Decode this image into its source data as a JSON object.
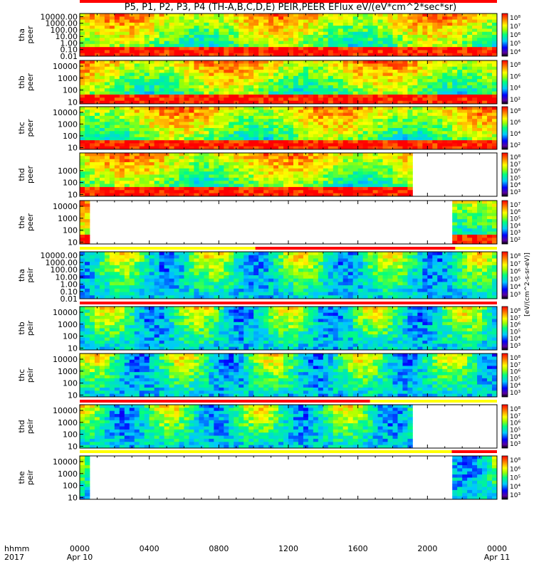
{
  "chart_data": {
    "type": "heatmap",
    "title": "P5, P1, P2, P3, P4 (TH-A,B,C,D,E) PEIR,PEER EFlux eV/(eV*cm^2*sec*sr)",
    "colorbar_label": "[eV/(cm^2-s-sr-eV)]",
    "x_axis": {
      "row1_label": "hhmm",
      "row2_label": "2017",
      "ticks": [
        "0000",
        "0400",
        "0800",
        "1200",
        "1600",
        "2000",
        "0000"
      ],
      "date_labels": [
        "Apr 10",
        "Apr 11"
      ],
      "range_hours": [
        0,
        24
      ]
    },
    "panels": [
      {
        "label_top": "tha",
        "label_bottom": "peer",
        "y_scale": "log",
        "y_range": [
          0.01,
          30000
        ],
        "yticks": [
          "10000.00",
          "1000.00",
          "100.00",
          "10.00",
          "1.00",
          "0.10",
          "0.01"
        ],
        "cb_ticks": [
          "10⁸",
          "10⁷",
          "10⁶",
          "10⁵",
          "10⁴"
        ],
        "data_coverage_hours": [
          0,
          24
        ],
        "bar": null
      },
      {
        "label_top": "thb",
        "label_bottom": "peer",
        "y_scale": "log",
        "y_range": [
          7,
          30000
        ],
        "yticks": [
          "10000",
          "1000",
          "100",
          "10"
        ],
        "cb_ticks": [
          "10⁸",
          "10⁶",
          "10⁴",
          "10²"
        ],
        "data_coverage_hours": [
          0,
          24
        ],
        "bar": null
      },
      {
        "label_top": "thc",
        "label_bottom": "peer",
        "y_scale": "log",
        "y_range": [
          7,
          30000
        ],
        "yticks": [
          "10000",
          "1000",
          "100",
          "10"
        ],
        "cb_ticks": [
          "10⁸",
          "10⁶",
          "10⁴",
          "10²"
        ],
        "data_coverage_hours": [
          0,
          24
        ],
        "bar": null
      },
      {
        "label_top": "thd",
        "label_bottom": "peer",
        "y_scale": "log",
        "y_range": [
          7,
          30000
        ],
        "yticks": [
          "1000",
          "100",
          "10"
        ],
        "cb_ticks": [
          "10⁸",
          "10⁷",
          "10⁶",
          "10⁵",
          "10⁴",
          "10³"
        ],
        "data_coverage_hours": [
          0,
          19.2
        ],
        "bar": null
      },
      {
        "label_top": "the",
        "label_bottom": "peer",
        "y_scale": "log",
        "y_range": [
          7,
          30000
        ],
        "yticks": [
          "10000",
          "1000",
          "100",
          "10"
        ],
        "cb_ticks": [
          "10⁷",
          "10⁶",
          "10⁵",
          "10⁴",
          "10³",
          "10²"
        ],
        "data_coverage_hours": [
          [
            0,
            0.55
          ],
          [
            21.5,
            24
          ]
        ],
        "bar": null
      },
      {
        "label_top": "tha",
        "label_bottom": "peir",
        "y_scale": "log",
        "y_range": [
          0.01,
          30000
        ],
        "yticks": [
          "10000.00",
          "1000.00",
          "100.00",
          "10.00",
          "1.00",
          "0.10",
          "0.01"
        ],
        "cb_ticks": [
          "10⁸",
          "10⁷",
          "10⁶",
          "10⁵",
          "10⁴",
          "10³"
        ],
        "data_coverage_hours": [
          0,
          24
        ],
        "bar": {
          "segments": [
            {
              "from": 0,
              "to": 10.1,
              "color": "#ffff00"
            },
            {
              "from": 10.1,
              "to": 21.6,
              "color": "#ff0000"
            },
            {
              "from": 21.6,
              "to": 24,
              "color": "#ffff00"
            }
          ]
        }
      },
      {
        "label_top": "thb",
        "label_bottom": "peir",
        "y_scale": "log",
        "y_range": [
          7,
          30000
        ],
        "yticks": [
          "10000",
          "1000",
          "100",
          "10"
        ],
        "cb_ticks": [
          "10⁸",
          "10⁷",
          "10⁶",
          "10⁵",
          "10⁴",
          "10³"
        ],
        "data_coverage_hours": [
          0,
          24
        ],
        "bar": {
          "segments": [
            {
              "from": 0,
              "to": 24,
              "color": "#ff0000"
            }
          ]
        }
      },
      {
        "label_top": "thc",
        "label_bottom": "peir",
        "y_scale": "log",
        "y_range": [
          7,
          30000
        ],
        "yticks": [
          "10000",
          "1000",
          "100",
          "10"
        ],
        "cb_ticks": [
          "10⁸",
          "10⁷",
          "10⁶",
          "10⁵",
          "10⁴",
          "10³"
        ],
        "data_coverage_hours": [
          0,
          24
        ],
        "bar": {
          "segments": [
            {
              "from": 0,
              "to": 24,
              "color": "#ff0000"
            }
          ]
        }
      },
      {
        "label_top": "thd",
        "label_bottom": "peir",
        "y_scale": "log",
        "y_range": [
          7,
          30000
        ],
        "yticks": [
          "10000",
          "1000",
          "100",
          "10"
        ],
        "cb_ticks": [
          "10⁸",
          "10⁷",
          "10⁶",
          "10⁵",
          "10⁴",
          "10³"
        ],
        "data_coverage_hours": [
          0,
          19.2
        ],
        "bar": {
          "segments": [
            {
              "from": 0,
              "to": 16.7,
              "color": "#ff0000"
            },
            {
              "from": 16.7,
              "to": 24,
              "color": "#ffff00"
            }
          ]
        }
      },
      {
        "label_top": "the",
        "label_bottom": "peir",
        "y_scale": "log",
        "y_range": [
          7,
          30000
        ],
        "yticks": [
          "10000",
          "1000",
          "100",
          "10"
        ],
        "cb_ticks": [
          "10⁸",
          "10⁶",
          "10⁵",
          "10⁴",
          "10³"
        ],
        "data_coverage_hours": [
          [
            0,
            0.55
          ],
          [
            21.4,
            24
          ]
        ],
        "bar": {
          "segments": [
            {
              "from": 0,
              "to": 21.4,
              "color": "#ffff00"
            },
            {
              "from": 21.4,
              "to": 24,
              "color": "#ff0000"
            }
          ]
        }
      }
    ]
  }
}
